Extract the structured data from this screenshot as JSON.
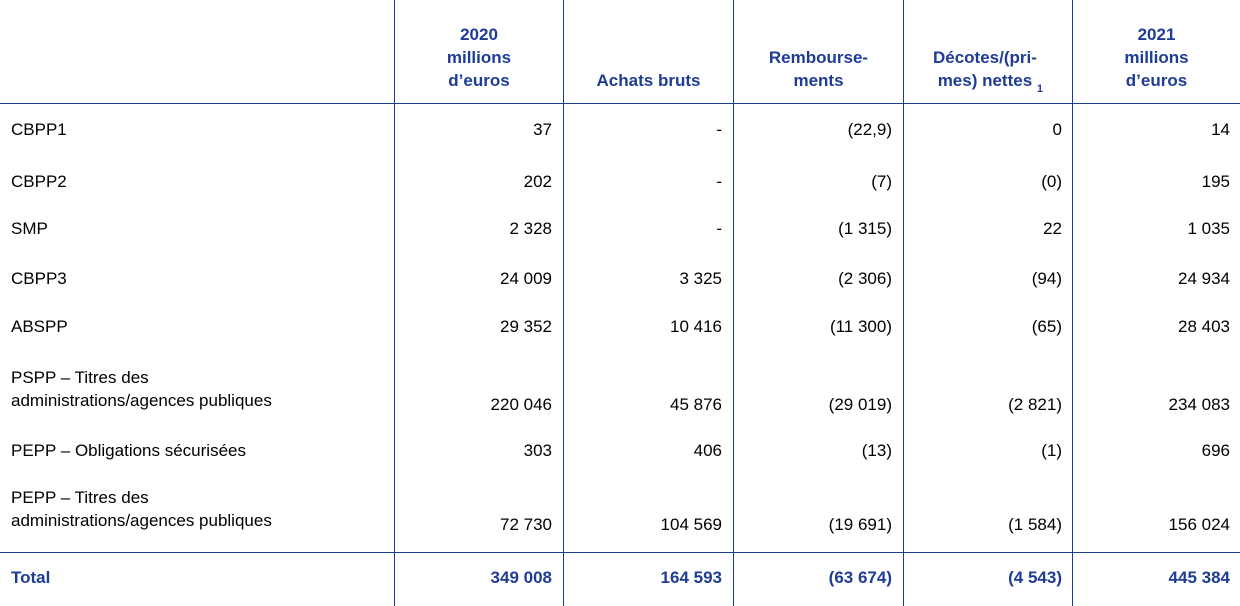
{
  "table": {
    "headers": [
      {
        "label": "2020\nmillions\nd’euros"
      },
      {
        "label": "Achats bruts"
      },
      {
        "label": "Rembourse-\nments"
      },
      {
        "label": "Décotes/(pri-\nmes) nettes",
        "sup": "1"
      },
      {
        "label": "2021\nmillions\nd’euros"
      }
    ],
    "rows": [
      {
        "label": "CBPP1",
        "values": [
          "37",
          "-",
          "(22,9)",
          "0",
          "14"
        ]
      },
      {
        "label": "CBPP2",
        "values": [
          "202",
          "-",
          "(7)",
          "(0)",
          "195"
        ]
      },
      {
        "label": "SMP",
        "values": [
          "2 328",
          "-",
          "(1 315)",
          "22",
          "1 035"
        ]
      },
      {
        "label": "CBPP3",
        "values": [
          "24 009",
          "3 325",
          "(2 306)",
          "(94)",
          "24 934"
        ]
      },
      {
        "label": "ABSPP",
        "values": [
          "29 352",
          "10 416",
          "(11 300)",
          "(65)",
          "28 403"
        ]
      },
      {
        "label": "PSPP – Titres des\nadministrations/agences publiques",
        "values": [
          "220 046",
          "45 876",
          "(29 019)",
          "(2 821)",
          "234 083"
        ]
      },
      {
        "label": "PEPP – Obligations sécurisées",
        "values": [
          "303",
          "406",
          "(13)",
          "(1)",
          "696"
        ]
      },
      {
        "label": "PEPP – Titres des\nadministrations/agences publiques",
        "values": [
          "72 730",
          "104 569",
          "(19 691)",
          "(1 584)",
          "156 024"
        ]
      }
    ],
    "total": {
      "label": "Total",
      "values": [
        "349 008",
        "164 593",
        "(63 674)",
        "(4 543)",
        "445 384"
      ]
    }
  },
  "colors": {
    "accent": "#1f3c96"
  }
}
